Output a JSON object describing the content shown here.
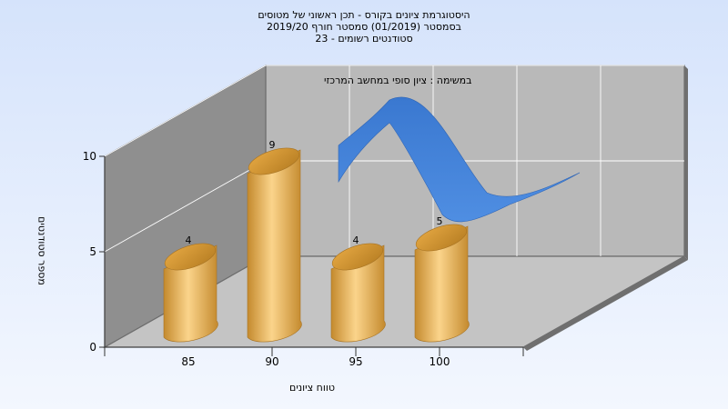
{
  "title_lines": [
    "היסטוגרמת ציונים בקורס - תכן ראשוני של מטוסים",
    "בסמסטר  (01/2019)  סמסטר חורף 2019/20",
    "סטודנטים רשומים - 23"
  ],
  "annotation": "במשימה : ציון סופי במחשב המרכזי",
  "colors": {
    "background_top": "#d5e3fb",
    "bar_light": "#fbd48b",
    "bar_dark": "#c48a2e",
    "curve": "#3f7fd6",
    "back_wall": "#b9b9b9",
    "left_wall": "#8f8f8f",
    "floor": "#c4c4c4"
  },
  "chart_data": {
    "type": "bar",
    "title": "היסטוגרמת ציונים בקורס - תכן ראשוני של מטוסים",
    "xlabel": "טווח ציונים",
    "ylabel": "מספר סטודנטים",
    "categories": [
      "85",
      "90",
      "95",
      "100"
    ],
    "values": [
      4,
      9,
      4,
      5
    ],
    "data_labels": [
      "4",
      "9",
      "4",
      "5"
    ],
    "ylim": [
      0,
      10
    ],
    "yticks": [
      "0",
      "5",
      "10"
    ],
    "xticks": [
      "85",
      "90",
      "95",
      "100"
    ],
    "grid": true,
    "overlay": {
      "type": "line",
      "description_visible": false,
      "x": [
        93.5,
        97,
        100.5,
        103
      ],
      "y": [
        9.0,
        10.9,
        6.0,
        7.1
      ]
    }
  }
}
